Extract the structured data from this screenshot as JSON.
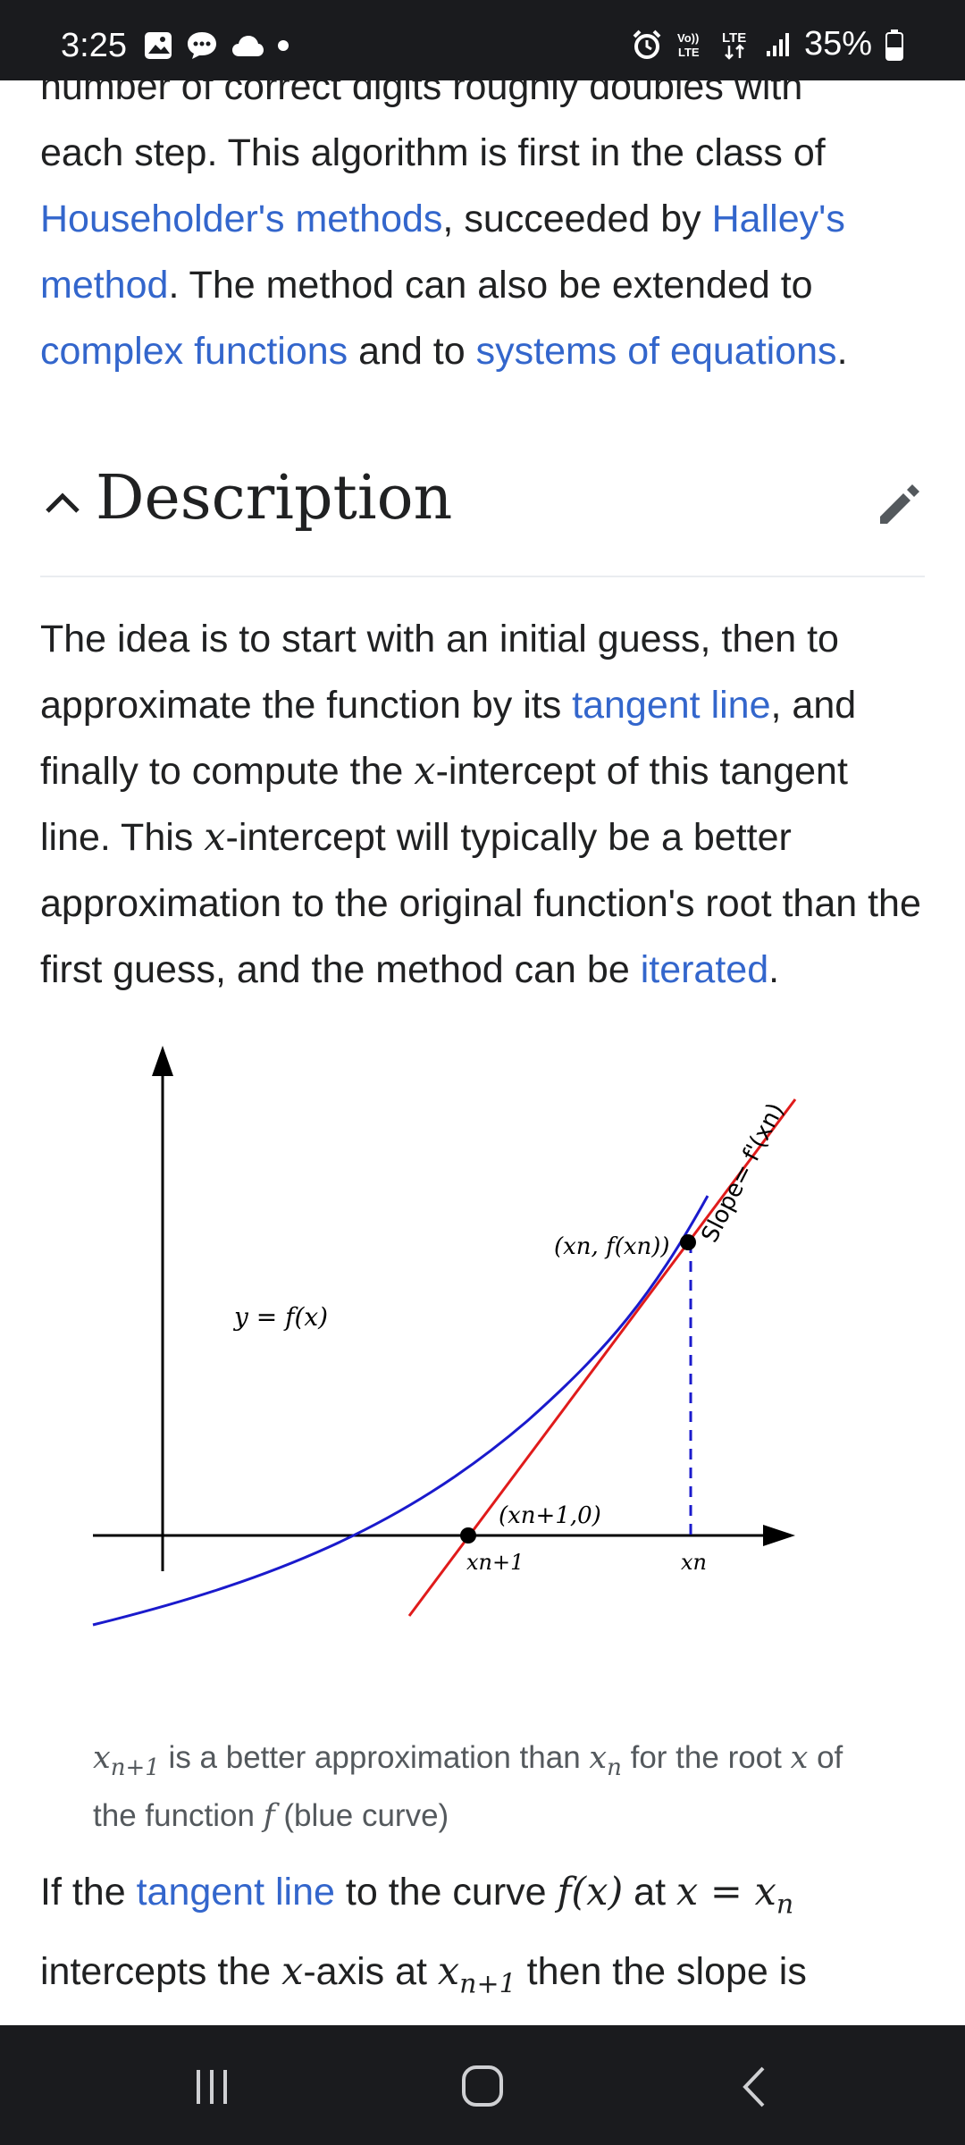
{
  "status_bar": {
    "time": "3:25",
    "battery": "35%",
    "network": "LTE"
  },
  "intro": {
    "line0": "number of correct digits roughly doubles with",
    "text1": "each step. This algorithm is first in the class of ",
    "link_householder": "Householder's methods",
    "text2": ", succeeded by ",
    "link_halley": "Halley's method",
    "text3": ". The method can also be extended to ",
    "link_complex": "complex functions",
    "text4": " and to ",
    "link_systems": "systems of equations",
    "text5": "."
  },
  "section": {
    "title": "Description"
  },
  "description": {
    "t1": "The idea is to start with an initial guess, then to approximate the function by its ",
    "link_tangent": "tangent line",
    "t2": ", and finally to compute the ",
    "x1": "x",
    "t3": "-intercept of this tangent line. This ",
    "x2": "x",
    "t4": "-intercept will typically be a better approximation to the original function's root than the first guess, and the method can be ",
    "link_iterated": "iterated",
    "t5": "."
  },
  "figure": {
    "label_curve": "y = f(x)",
    "label_point": "(xn, f(xn))",
    "label_slope": "Slope= f'(xn)",
    "label_intercept": "(xn+1,0)",
    "label_xn1": "xn+1",
    "label_xn": "xn",
    "curve_color": "#1a1acc",
    "tangent_color": "#e01b1b"
  },
  "caption": {
    "xn1": "x",
    "sub_n1": "n+1",
    "t1": " is a better approximation than ",
    "xn": "x",
    "sub_n": "n",
    "t2": " for the root ",
    "x": "x",
    "t3": " of the function ",
    "f": "f",
    "t4": " (blue curve)"
  },
  "para3": {
    "t1": "If the ",
    "link_tangent": "tangent line",
    "t2": " to the curve ",
    "fx": "f(x)",
    "t3": " at ",
    "eq": "x = x",
    "sub_n": "n",
    "t4": " intercepts the ",
    "x": "x",
    "t5": "-axis at ",
    "xn1": "x",
    "sub_n1": "n+1",
    "t6": " then the slope is"
  }
}
